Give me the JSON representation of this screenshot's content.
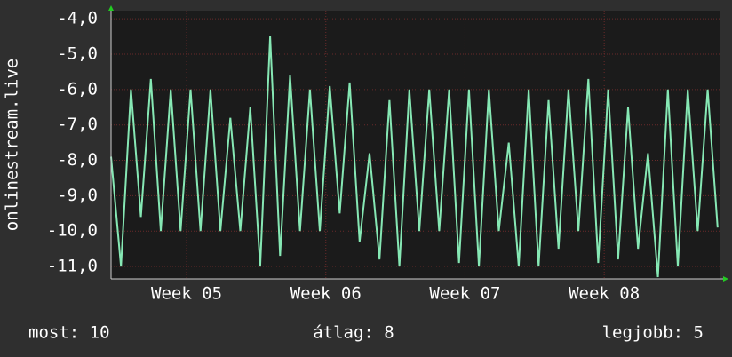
{
  "chart_data": {
    "type": "line",
    "y_label": "onlinestream.live",
    "x": [
      0,
      0.5,
      1,
      1.5,
      2,
      2.5,
      3,
      3.5,
      4,
      4.5,
      5,
      5.5,
      6,
      6.5,
      7,
      7.5,
      8,
      8.5,
      9,
      9.5,
      10,
      10.5,
      11,
      11.5,
      12,
      12.5,
      13,
      13.5,
      14,
      14.5,
      15,
      15.5,
      16,
      16.5,
      17,
      17.5,
      18,
      18.5,
      19,
      19.5,
      20,
      20.5,
      21,
      21.5,
      22,
      22.5,
      23,
      23.5,
      24,
      24.5,
      25,
      25.5,
      26,
      26.5,
      27,
      27.5,
      28,
      28.5,
      29,
      29.5,
      30,
      30.5
    ],
    "series": [
      {
        "name": "onlinestream.live",
        "color": "#86e8b4",
        "values": [
          -7.9,
          -11.0,
          -6.0,
          -9.6,
          -5.7,
          -10.0,
          -6.0,
          -10.0,
          -6.0,
          -10.0,
          -6.0,
          -10.0,
          -6.8,
          -10.0,
          -6.5,
          -11.0,
          -4.5,
          -10.7,
          -5.6,
          -10.0,
          -6.0,
          -10.0,
          -5.9,
          -9.5,
          -5.8,
          -10.3,
          -7.8,
          -10.8,
          -6.3,
          -11.0,
          -6.0,
          -10.0,
          -6.0,
          -10.0,
          -6.0,
          -10.9,
          -6.0,
          -11.0,
          -6.0,
          -10.0,
          -7.5,
          -11.0,
          -6.0,
          -11.0,
          -6.3,
          -10.5,
          -6.0,
          -10.0,
          -5.7,
          -10.9,
          -6.0,
          -10.8,
          -6.5,
          -10.5,
          -7.8,
          -11.3,
          -6.0,
          -11.0,
          -6.0,
          -10.0,
          -6.0,
          -9.9
        ]
      }
    ],
    "xlim": [
      0,
      30.6
    ],
    "xticks": [
      {
        "value": 3.8,
        "label": "Week 05"
      },
      {
        "value": 10.8,
        "label": "Week 06"
      },
      {
        "value": 17.8,
        "label": "Week 07"
      },
      {
        "value": 24.8,
        "label": "Week 08"
      }
    ],
    "ylim": [
      -11.35,
      -3.77
    ],
    "yticks": [
      {
        "value": -4,
        "label": "-4,0"
      },
      {
        "value": -5,
        "label": "-5,0"
      },
      {
        "value": -6,
        "label": "-6,0"
      },
      {
        "value": -7,
        "label": "-7,0"
      },
      {
        "value": -8,
        "label": "-8,0"
      },
      {
        "value": -9,
        "label": "-9,0"
      },
      {
        "value": -10,
        "label": "-10,0"
      },
      {
        "value": -11,
        "label": "-11,0"
      }
    ],
    "grid": true,
    "footer": [
      "most: 10",
      "átlag: 8",
      "legjobb: 5"
    ]
  }
}
